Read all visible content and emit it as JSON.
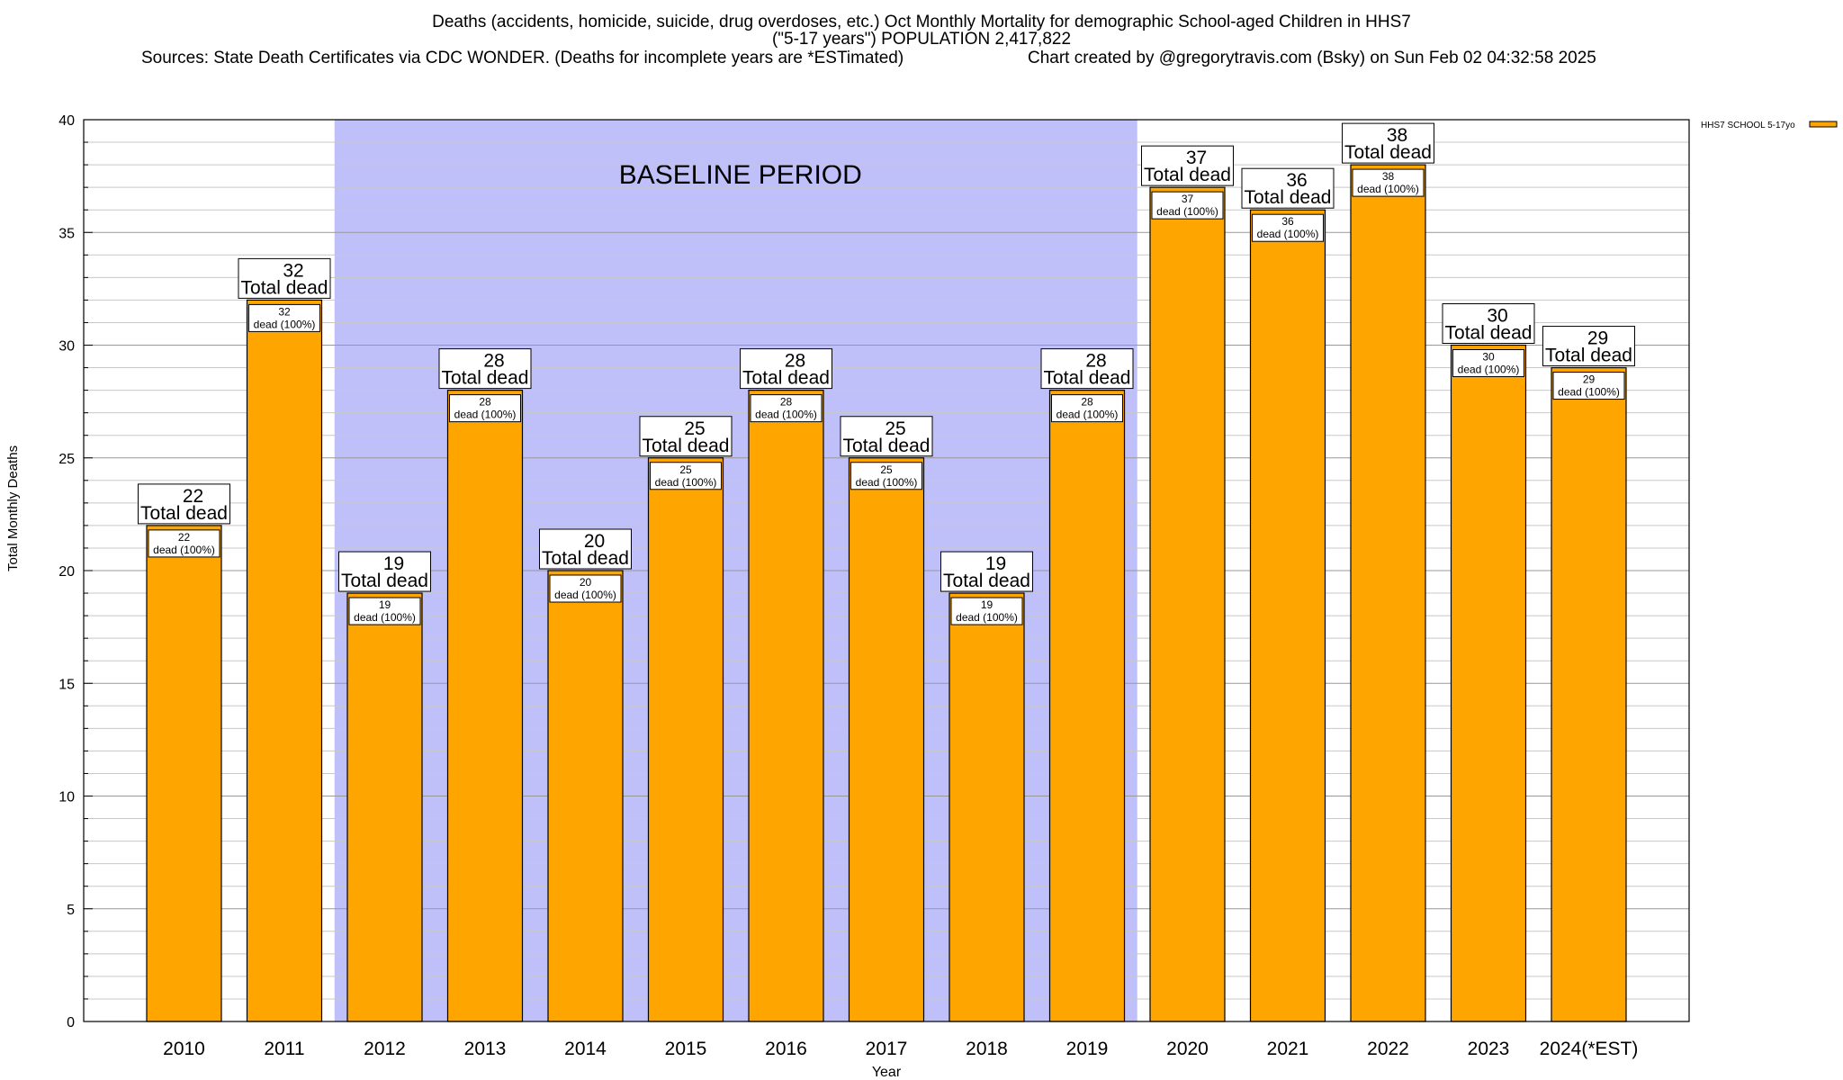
{
  "title": {
    "line1": "Deaths (accidents, homicide, suicide, drug overdoses, etc.) Oct Monthly Mortality for demographic School-aged Children in HHS7",
    "line2": "(\"5-17 years\") POPULATION 2,417,822",
    "sources": "Sources: State Death Certificates via CDC WONDER. (Deaths for incomplete years are *ESTimated)",
    "credit": "Chart created by @gregorytravis.com (Bsky) on Sun Feb 02 04:32:58 2025"
  },
  "chart_data": {
    "type": "bar",
    "categories": [
      "2010",
      "2011",
      "2012",
      "2013",
      "2014",
      "2015",
      "2016",
      "2017",
      "2018",
      "2019",
      "2020",
      "2021",
      "2022",
      "2023",
      "2024(*EST)"
    ],
    "series": [
      {
        "name": "HHS7 SCHOOL 5-17yo",
        "values": [
          22,
          32,
          19,
          28,
          20,
          25,
          28,
          25,
          19,
          28,
          37,
          36,
          38,
          30,
          29
        ]
      }
    ],
    "xlabel": "Year",
    "ylabel": "Total Monthly Deaths",
    "ylim": [
      0,
      40
    ],
    "yticks": [
      0,
      5,
      10,
      15,
      20,
      25,
      30,
      35,
      40
    ],
    "grid": true,
    "legend_position": "top-right",
    "annotation_outer_suffix": "Total dead",
    "annotation_inner_suffix": "dead (100%)",
    "shaded_region": {
      "label": "BASELINE PERIOD",
      "from_category": "2012",
      "to_category": "2019"
    },
    "colors": {
      "bar": "#FFA500",
      "bar_edge": "#000000",
      "shade": "#BFBFFA",
      "grid": "#AAAAAA"
    }
  }
}
